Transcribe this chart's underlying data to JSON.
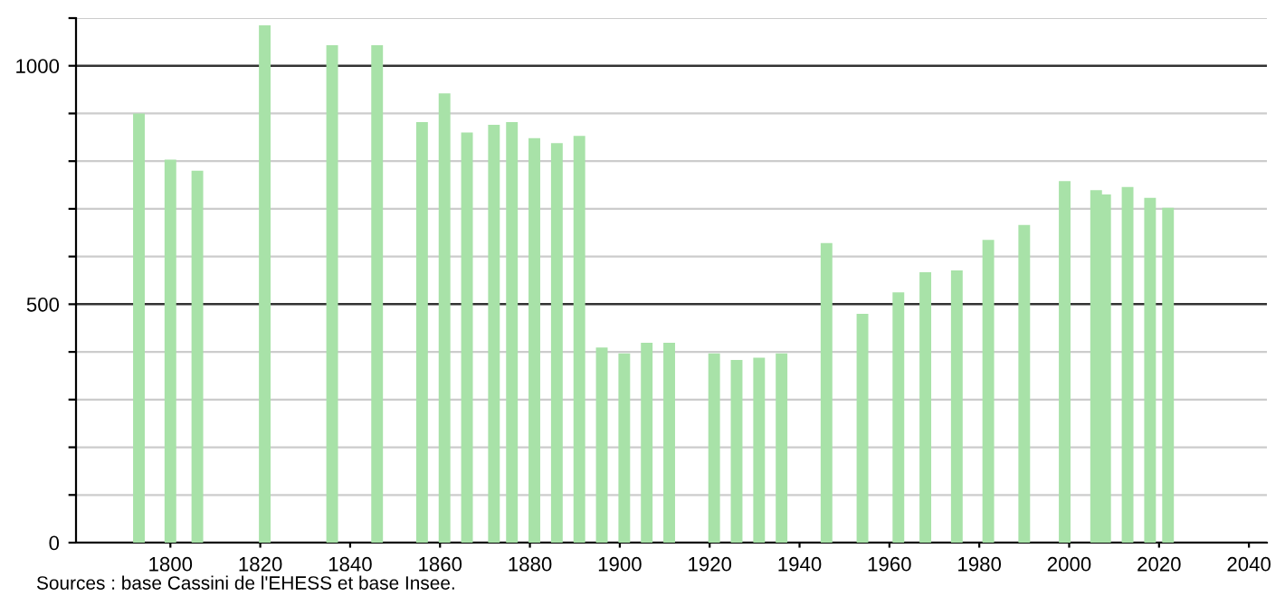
{
  "chart_data": {
    "type": "bar",
    "color": "#a8e2a8",
    "x": [
      1793,
      1800,
      1806,
      1821,
      1836,
      1846,
      1856,
      1861,
      1866,
      1872,
      1876,
      1881,
      1886,
      1891,
      1896,
      1901,
      1906,
      1911,
      1921,
      1926,
      1931,
      1936,
      1946,
      1954,
      1962,
      1968,
      1975,
      1982,
      1990,
      1999,
      2006,
      2008,
      2013,
      2018,
      2022
    ],
    "values": [
      900,
      803,
      780,
      1085,
      1043,
      1043,
      882,
      942,
      860,
      876,
      882,
      848,
      838,
      853,
      409,
      397,
      419,
      419,
      397,
      383,
      388,
      397,
      628,
      480,
      525,
      567,
      571,
      635,
      666,
      758,
      739,
      730,
      746,
      723,
      702
    ],
    "xlim": [
      1779,
      2044
    ],
    "xticks": [
      1800,
      1820,
      1840,
      1860,
      1880,
      1900,
      1920,
      1940,
      1960,
      1980,
      2000,
      2020,
      2040
    ],
    "ylim": [
      0,
      1100
    ],
    "yticks": [
      0,
      {
        "value": 100,
        "label": null
      },
      {
        "value": 200,
        "label": null
      },
      {
        "value": 300,
        "label": null
      },
      {
        "value": 400,
        "label": null
      },
      500,
      {
        "value": 600,
        "label": null
      },
      {
        "value": 700,
        "label": null
      },
      {
        "value": 800,
        "label": null
      },
      {
        "value": 900,
        "label": null
      },
      1000,
      {
        "value": 1100,
        "label": null
      }
    ],
    "grid": "y",
    "legend": false,
    "annotations": [
      "Sources : base Cassini de l'EHESS et base Insee."
    ]
  }
}
